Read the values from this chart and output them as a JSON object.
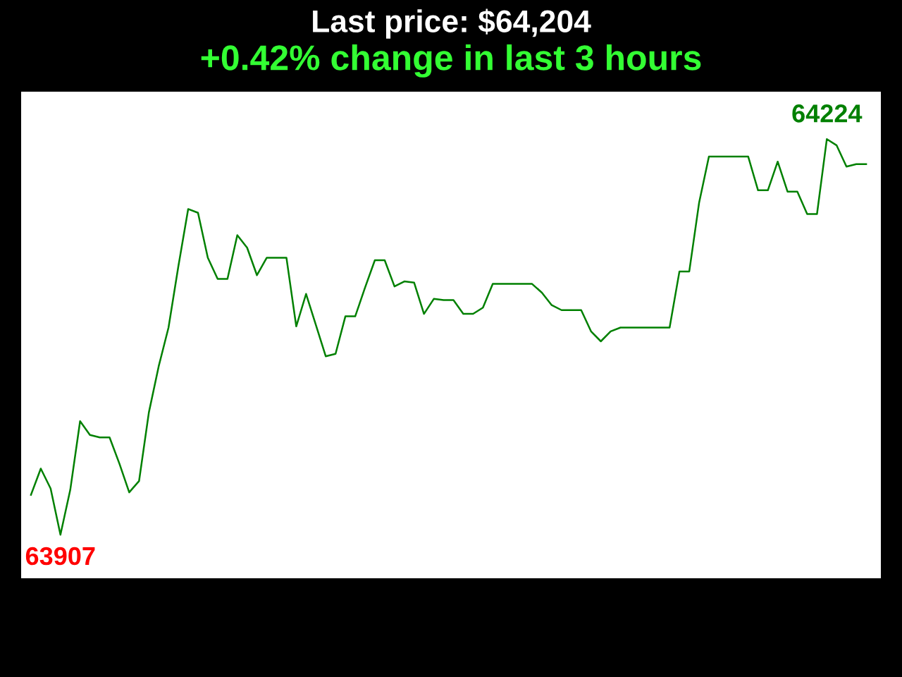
{
  "chart_data": {
    "type": "line",
    "title": "Last price: $64,204",
    "subtitle": "+0.42% change in last 3 hours",
    "categories": [
      null,
      null,
      null,
      null,
      null,
      null,
      null,
      null,
      null,
      null,
      null,
      null,
      null,
      null,
      null,
      null,
      null,
      null,
      null,
      null,
      null,
      null,
      null,
      null,
      null,
      null,
      null,
      null,
      null,
      null,
      null,
      null,
      null,
      null,
      null,
      null,
      null,
      null,
      null,
      null,
      null,
      null,
      null,
      null,
      null,
      null,
      null,
      null,
      null,
      null,
      null,
      null,
      null,
      null,
      null,
      null,
      null,
      null,
      null,
      null,
      null,
      null,
      null,
      null,
      null,
      null,
      null,
      null,
      null,
      null,
      null,
      null,
      null,
      null,
      null,
      null,
      null,
      null,
      null,
      null,
      null,
      null,
      null,
      null,
      null,
      null
    ],
    "series": [
      {
        "color": "#008000",
        "values": [
          63939,
          63960,
          63944,
          63907,
          63943,
          63998,
          63987,
          63985,
          63985,
          63964,
          63941,
          63950,
          64005,
          64042,
          64073,
          64122,
          64168,
          64165,
          64129,
          64112,
          64112,
          64147,
          64137,
          64115,
          64129,
          64129,
          64129,
          64074,
          64100,
          64075,
          64050,
          64052,
          64082,
          64082,
          64105,
          64127,
          64127,
          64106,
          64110,
          64109,
          64084,
          64096,
          64095,
          64095,
          64084,
          64084,
          64089,
          64108,
          64108,
          64108,
          64108,
          64108,
          64101,
          64091,
          64087,
          64087,
          64087,
          64070,
          64062,
          64070,
          64073,
          64073,
          64073,
          64073,
          64073,
          64073,
          64118,
          64118,
          64173,
          64210,
          64210,
          64210,
          64210,
          64210,
          64183,
          64183,
          64206,
          64182,
          64182,
          64164,
          64164,
          64224,
          64219,
          64202,
          64204,
          64204
        ],
        "value_labels": [
          null,
          null,
          null,
          "63907",
          null,
          null,
          null,
          null,
          null,
          null,
          null,
          null,
          null,
          null,
          null,
          null,
          null,
          null,
          null,
          null,
          null,
          null,
          null,
          null,
          null,
          null,
          null,
          null,
          null,
          null,
          null,
          null,
          null,
          null,
          null,
          null,
          null,
          null,
          null,
          null,
          null,
          null,
          null,
          null,
          null,
          null,
          null,
          null,
          null,
          null,
          null,
          null,
          null,
          null,
          null,
          null,
          null,
          null,
          null,
          null,
          null,
          null,
          null,
          null,
          null,
          null,
          null,
          null,
          null,
          null,
          null,
          null,
          null,
          null,
          null,
          null,
          null,
          null,
          null,
          null,
          null,
          "64224",
          null,
          null,
          null,
          null
        ]
      }
    ],
    "grid": false
  }
}
